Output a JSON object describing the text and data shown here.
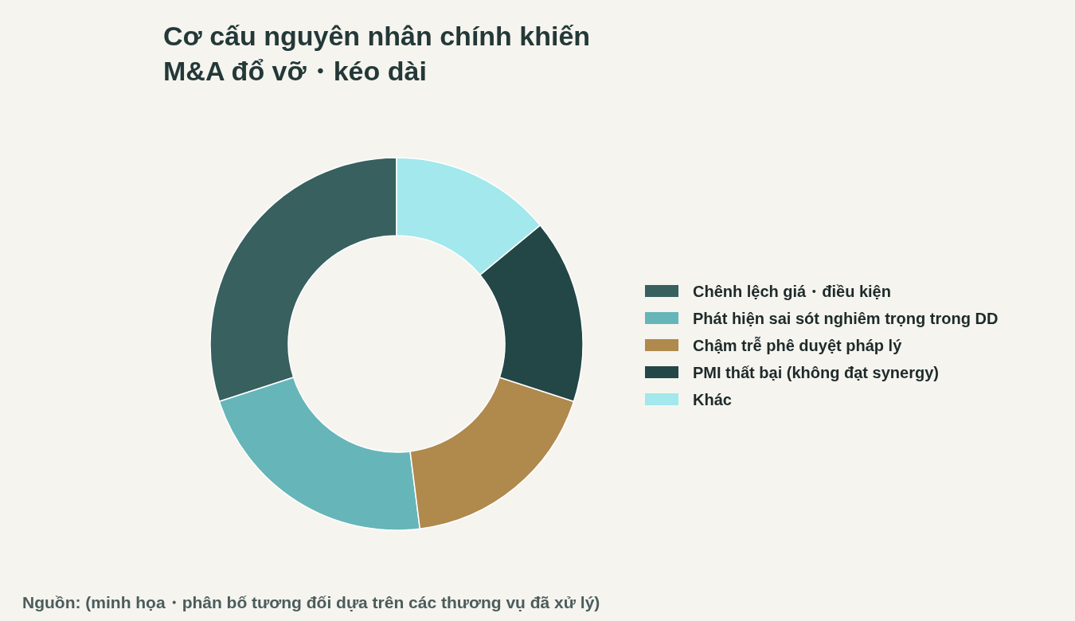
{
  "chart_data": {
    "type": "donut",
    "title": "Cơ cấu nguyên nhân chính khiến\nM&A đổ vỡ・kéo dài",
    "categories": [
      "Chênh lệch giá・điều kiện",
      "Phát hiện sai sót nghiêm trọng trong DD",
      "Chậm trễ phê duyệt pháp lý",
      "PMI thất bại (không đạt synergy)",
      "Khác"
    ],
    "values": [
      30,
      22,
      18,
      16,
      14
    ],
    "colors": [
      "#37605f",
      "#66b5b9",
      "#b0894d",
      "#234646",
      "#a2e8ec"
    ],
    "legend": "right",
    "annotations": [
      "Nguồn: (minh họa・phân bố tương đối dựa trên các thương vụ đã xử lý)"
    ]
  }
}
